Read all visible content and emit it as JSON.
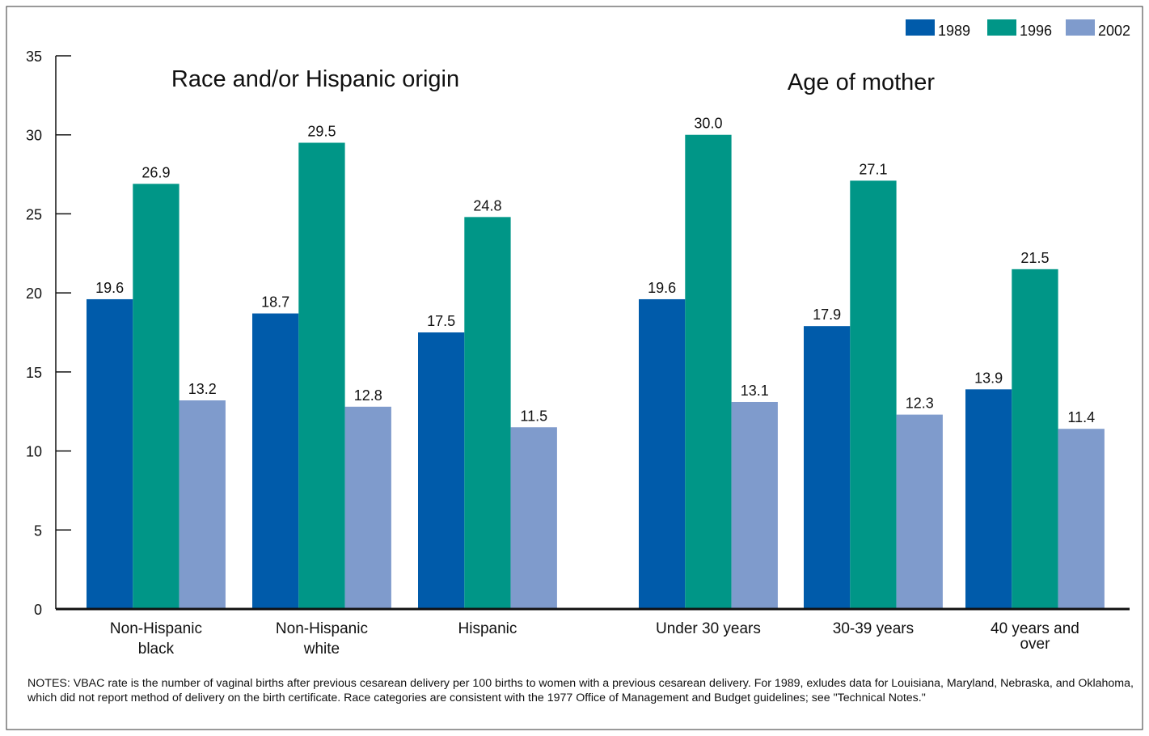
{
  "chart_data": {
    "type": "bar",
    "groups": [
      {
        "title": "Race and/or Hispanic origin",
        "categories": [
          {
            "lines": [
              "Non-Hispanic",
              "black"
            ],
            "values": [
              19.6,
              26.9,
              13.2
            ]
          },
          {
            "lines": [
              "Non-Hispanic",
              "white"
            ],
            "values": [
              18.7,
              29.5,
              12.8
            ]
          },
          {
            "lines": [
              "Hispanic"
            ],
            "values": [
              17.5,
              24.8,
              11.5
            ]
          }
        ]
      },
      {
        "title": "Age of mother",
        "categories": [
          {
            "lines": [
              "Under 30 years"
            ],
            "values": [
              19.6,
              30.0,
              13.1
            ]
          },
          {
            "lines": [
              "30-39 years"
            ],
            "values": [
              17.9,
              27.1,
              12.3
            ]
          },
          {
            "lines": [
              "40 years and",
              "over"
            ],
            "values": [
              13.9,
              21.5,
              11.4
            ]
          }
        ]
      }
    ],
    "series": [
      {
        "name": "1989",
        "color": "#005baa"
      },
      {
        "name": "1996",
        "color": "#009687"
      },
      {
        "name": "2002",
        "color": "#7f9bcc"
      }
    ],
    "ylim": [
      0,
      35
    ],
    "yticks": [
      0,
      5,
      10,
      15,
      20,
      25,
      30,
      35
    ],
    "value_decimals": 1,
    "legend": "top-right",
    "grid": false
  },
  "notes": "NOTES: VBAC rate is the number of vaginal births after previous cesarean delivery per 100 births to women with a previous cesarean delivery. For 1989, exludes data for Louisiana, Maryland, Nebraska, and Oklahoma, which did not report method of delivery on the birth certificate. Race categories are consistent with the 1977 Office of Management and Budget guidelines; see \"Technical Notes.\""
}
